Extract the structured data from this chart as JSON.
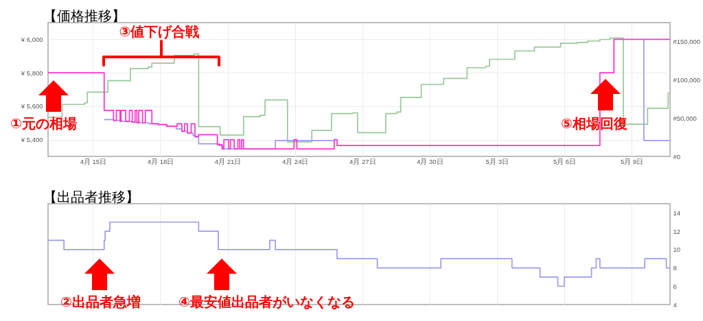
{
  "chart_data": [
    {
      "type": "step",
      "title": "【価格推移】",
      "xlim": [
        "--04-13T00:00",
        "--05-10T17:00"
      ],
      "xticks": [
        {
          "value": "--04-15",
          "label": "4月 15日"
        },
        {
          "value": "--04-18",
          "label": "4月 18日"
        },
        {
          "value": "--04-21",
          "label": "4月 21日"
        },
        {
          "value": "--04-24",
          "label": "4月 24日"
        },
        {
          "value": "--04-27",
          "label": "4月 27日"
        },
        {
          "value": "--04-30",
          "label": "4月 30日"
        },
        {
          "value": "--05-03",
          "label": "5月 3日"
        },
        {
          "value": "--05-06",
          "label": "5月 6日"
        },
        {
          "value": "--05-09",
          "label": "5月 9日"
        }
      ],
      "ylim": [
        5300,
        6100
      ],
      "yticks": [
        {
          "value": 5400,
          "label": "¥ 5,400"
        },
        {
          "value": 5600,
          "label": "¥ 5,600"
        },
        {
          "value": 5800,
          "label": "¥ 5,800"
        },
        {
          "value": 6000,
          "label": "¥ 6,000"
        }
      ],
      "y2lim": [
        0,
        175000
      ],
      "y2ticks": [
        {
          "value": 0,
          "label": "#0"
        },
        {
          "value": 50000,
          "label": "#50,000"
        },
        {
          "value": 100000,
          "label": "#100,000"
        },
        {
          "value": 150000,
          "label": "#150,000"
        }
      ],
      "grid": true,
      "series": [
        {
          "color": "#99c799",
          "axis": "y2",
          "x": [
            "--04-13T00:00",
            "--04-13T15:00",
            "--04-14T15:00",
            "--04-14T18:00",
            "--04-15T16:00",
            "--04-16T16:00",
            "--04-17T11:00",
            "--04-17T15:00",
            "--04-18T15:00",
            "--04-19T12:00",
            "--04-19T17:00",
            "--04-20T16:00",
            "--04-21T17:00",
            "--04-22T11:00",
            "--04-22T16:00",
            "--04-23T16:00",
            "--04-24T18:00",
            "--04-25T15:00",
            "--04-26T14:00",
            "--04-26T19:00",
            "--04-28T01:00",
            "--04-28T13:00",
            "--04-28T17:00",
            "--04-29T15:00",
            "--04-30T14:00",
            "--04-30T15:00",
            "--05-01T16:00",
            "--05-02T12:00",
            "--05-02T16:00",
            "--05-03T19:00",
            "--05-04T16:00",
            "--05-05T20:00",
            "--05-06T14:00",
            "--05-07T01:00",
            "--05-07T14:00",
            "--05-08T01:00",
            "--05-08T15:00",
            "--05-09T17:00",
            "--05-10T15:00",
            "--05-10T17:00"
          ],
          "values": [
            51000,
            68000,
            70000,
            84000,
            99000,
            115000,
            117000,
            122000,
            132000,
            134000,
            39000,
            28000,
            52000,
            54000,
            74000,
            19000,
            34000,
            56000,
            57000,
            31000,
            56000,
            58000,
            77000,
            94000,
            95000,
            102000,
            116000,
            118000,
            127000,
            138000,
            143000,
            148000,
            149000,
            151000,
            153000,
            155000,
            42000,
            63000,
            83000,
            83000
          ]
        },
        {
          "color": "#9b9bee",
          "x": [
            "--04-15T12:00",
            "--04-15T22:00",
            "--04-16T07:00",
            "--04-16T17:00",
            "--04-17T02:00",
            "--04-17T12:00",
            "--04-17T22:00",
            "--04-18T07:00",
            "--04-18T17:00",
            "--04-18T23:00",
            "--04-19T05:00",
            "--04-19T11:00",
            "--04-19T13:00",
            "--04-19T17:00",
            "--04-20T15:00",
            "--04-20T19:00",
            "--04-23T03:00",
            "--04-25T19:00",
            "--04-25T20:00",
            "--05-09T13:00",
            "--05-09T13:00",
            "--05-10T17:00"
          ],
          "values": [
            5520,
            5515,
            5510,
            5505,
            5500,
            5495,
            5490,
            5480,
            5465,
            5450,
            5440,
            5425,
            5415,
            5375,
            5365,
            5345,
            5395,
            5395,
            null,
            6000,
            5395,
            5395
          ]
        },
        {
          "color": "#ff33cc",
          "x": [
            "--04-13T00:00",
            "--04-15T12:00",
            "--04-15T22:00",
            "--04-16T01:00",
            "--04-16T05:00",
            "--04-16T06:00",
            "--04-16T11:00",
            "--04-16T15:00",
            "--04-16T18:00",
            "--04-16T21:00",
            "--04-16T23:00",
            "--04-17T01:00",
            "--04-17T05:00",
            "--04-17T08:00",
            "--04-17T15:00",
            "--04-17T22:00",
            "--04-18T07:00",
            "--04-18T18:00",
            "--04-18T23:00",
            "--04-19T02:00",
            "--04-19T05:00",
            "--04-19T09:00",
            "--04-19T13:00",
            "--04-19T17:00",
            "--04-20T13:00",
            "--04-20T18:00",
            "--04-20T20:00",
            "--04-21T01:00",
            "--04-21T03:00",
            "--04-21T07:00",
            "--04-21T11:00",
            "--04-21T13:00",
            "--04-21T15:00",
            "--04-21T17:00",
            "--04-23T23:00",
            "--04-24T02:00",
            "--04-25T18:00",
            "--04-25T21:00",
            "--05-07T14:00",
            "--05-08T05:00",
            "--05-10T17:00"
          ],
          "values": [
            5800,
            5575,
            5515,
            5575,
            5510,
            5575,
            5510,
            5575,
            5505,
            5575,
            5500,
            5575,
            5500,
            5575,
            5495,
            5490,
            5480,
            5495,
            5450,
            5495,
            5440,
            5495,
            5420,
            5430,
            5370,
            5345,
            5400,
            5345,
            5400,
            5345,
            5400,
            5345,
            5400,
            5345,
            5400,
            5345,
            5400,
            5365,
            5800,
            6000,
            6000
          ]
        }
      ],
      "annotations": [
        "①元の相場",
        "③値下げ合戦",
        "⑤相場回復"
      ]
    },
    {
      "type": "step",
      "title": "【出品者推移】",
      "xlim": [
        "--04-13T00:00",
        "--05-10T17:00"
      ],
      "xticks": [
        {
          "value": "--04-15",
          "label": null
        },
        {
          "value": "--04-18",
          "label": null
        },
        {
          "value": "--04-21",
          "label": null
        },
        {
          "value": "--04-24",
          "label": null
        },
        {
          "value": "--04-27",
          "label": null
        },
        {
          "value": "--04-30",
          "label": null
        },
        {
          "value": "--05-03",
          "label": null
        },
        {
          "value": "--05-06",
          "label": null
        },
        {
          "value": "--05-09",
          "label": null
        }
      ],
      "ylim": [
        4,
        15
      ],
      "yticks": [
        4,
        6,
        8,
        10,
        12,
        14
      ],
      "grid": "x",
      "tick_labels": "y",
      "series": [
        {
          "color": "#9b9bee",
          "x": [
            "--04-13T00:00",
            "--04-13T17:00",
            "--04-15T12:00",
            "--04-15T13:00",
            "--04-15T18:00",
            "--04-19T17:00",
            "--04-20T14:00",
            "--04-22T21:00",
            "--04-23T03:00",
            "--04-25T21:00",
            "--04-27T16:00",
            "--04-30T12:00",
            "--05-03T16:00",
            "--05-04T22:00",
            "--05-05T17:00",
            "--05-06T00:00",
            "--05-07T05:00",
            "--05-07T10:00",
            "--05-07T14:00",
            "--05-09T14:00",
            "--05-10T13:00",
            "--05-10T17:00"
          ],
          "values": [
            11,
            10,
            11,
            12,
            13,
            12,
            10,
            11,
            10,
            9,
            8,
            9,
            8,
            7,
            6,
            7,
            8,
            9,
            8,
            9,
            8,
            8
          ]
        }
      ],
      "annotations": [
        "②出品者急増",
        "④最安値出品者がいなくなる"
      ]
    }
  ]
}
